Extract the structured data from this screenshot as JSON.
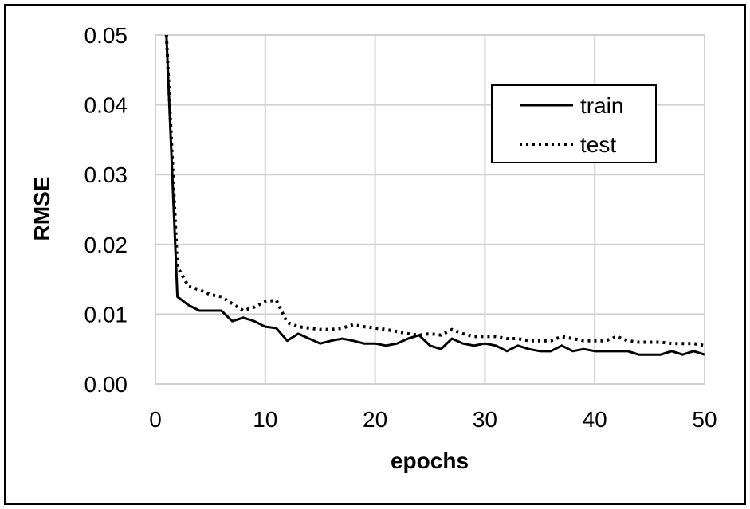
{
  "chart_data": {
    "type": "line",
    "xlabel": "epochs",
    "ylabel": "RMSE",
    "xlim": [
      0,
      50
    ],
    "ylim": [
      0,
      0.05
    ],
    "x_ticks": [
      "0",
      "10",
      "20",
      "30",
      "40",
      "50"
    ],
    "y_ticks": [
      "0.00",
      "0.01",
      "0.02",
      "0.03",
      "0.04",
      "0.05"
    ],
    "grid": true,
    "legend_position": "top-right",
    "x": [
      1,
      2,
      3,
      4,
      5,
      6,
      7,
      8,
      9,
      10,
      11,
      12,
      13,
      14,
      15,
      16,
      17,
      18,
      19,
      20,
      21,
      22,
      23,
      24,
      25,
      26,
      27,
      28,
      29,
      30,
      31,
      32,
      33,
      34,
      35,
      36,
      37,
      38,
      39,
      40,
      41,
      42,
      43,
      44,
      45,
      46,
      47,
      48,
      49,
      50
    ],
    "series": [
      {
        "name": "train",
        "style": "solid",
        "values": [
          0.05,
          0.0125,
          0.0113,
          0.0105,
          0.0105,
          0.0105,
          0.009,
          0.0095,
          0.009,
          0.0082,
          0.008,
          0.0062,
          0.0072,
          0.0065,
          0.0058,
          0.0062,
          0.0065,
          0.0062,
          0.0058,
          0.0058,
          0.0055,
          0.0058,
          0.0065,
          0.007,
          0.0055,
          0.005,
          0.0065,
          0.0058,
          0.0055,
          0.0058,
          0.0055,
          0.0047,
          0.0055,
          0.005,
          0.0047,
          0.0047,
          0.0055,
          0.0047,
          0.005,
          0.0047,
          0.0047,
          0.0047,
          0.0047,
          0.0042,
          0.0042,
          0.0042,
          0.0047,
          0.0042,
          0.0047,
          0.0042
        ]
      },
      {
        "name": "test",
        "style": "dotted",
        "values": [
          0.05,
          0.0168,
          0.014,
          0.0135,
          0.0128,
          0.0125,
          0.0115,
          0.0105,
          0.011,
          0.0118,
          0.012,
          0.0088,
          0.0082,
          0.008,
          0.0078,
          0.0078,
          0.008,
          0.0085,
          0.0082,
          0.008,
          0.0078,
          0.0075,
          0.0072,
          0.007,
          0.0072,
          0.007,
          0.0078,
          0.0072,
          0.0068,
          0.0068,
          0.0068,
          0.0065,
          0.0065,
          0.0062,
          0.0062,
          0.0062,
          0.0068,
          0.0065,
          0.0062,
          0.0062,
          0.0062,
          0.0068,
          0.0062,
          0.006,
          0.006,
          0.006,
          0.0058,
          0.0058,
          0.0058,
          0.0055
        ]
      }
    ]
  }
}
